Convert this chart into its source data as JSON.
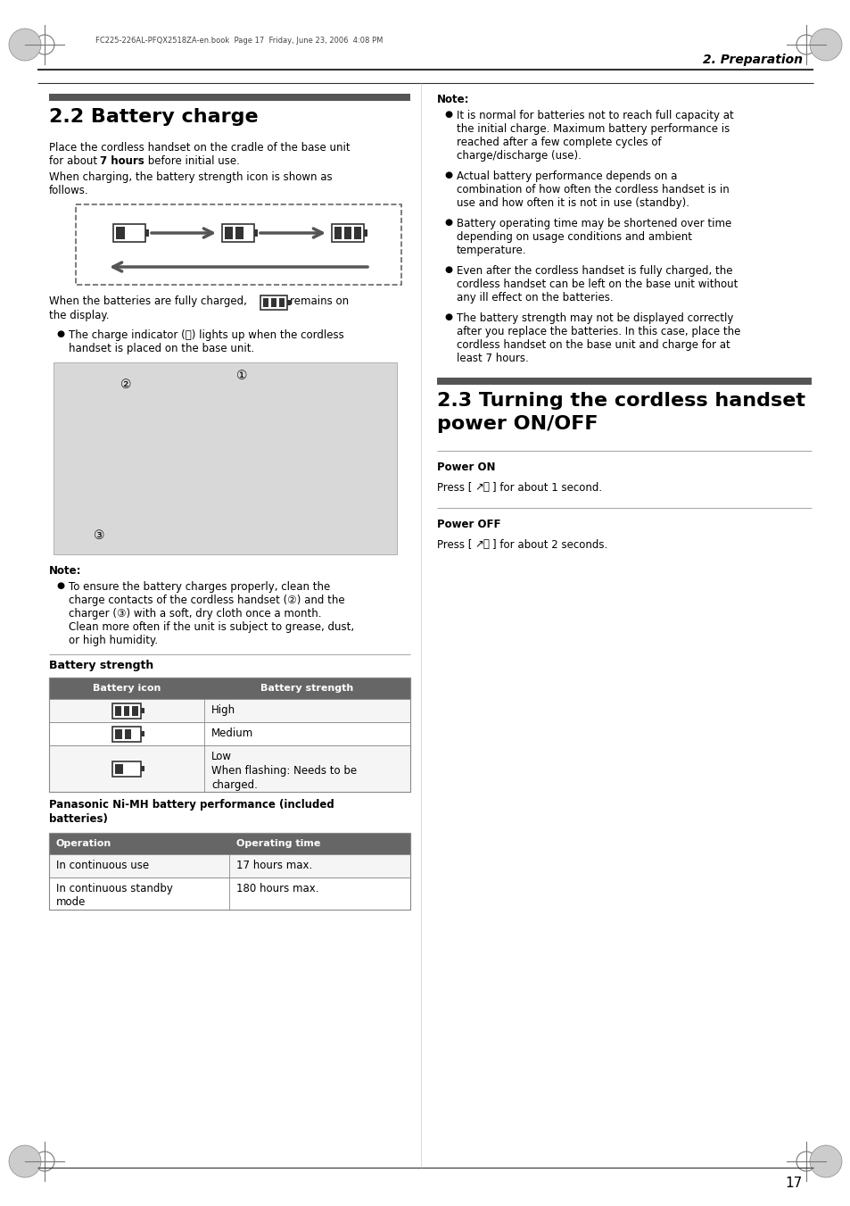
{
  "page_num": "17",
  "header_italic_bold": "2. Preparation",
  "file_info": "FC225-226AL-PFQX2518ZA-en.book  Page 17  Friday, June 23, 2006  4:08 PM",
  "sec22_title": "2.2 Battery charge",
  "sec22_p1a": "Place the cordless handset on the cradle of the base unit",
  "sec22_p1b": "for about ",
  "sec22_p1b_bold": "7 hours",
  "sec22_p1c": " before initial use.",
  "sec22_p2a": "When charging, the battery strength icon is shown as",
  "sec22_p2b": "follows.",
  "sec22_after_diag1": "When the batteries are fully charged,",
  "sec22_after_diag2": "remains on",
  "sec22_after_diag3": "the display.",
  "sec22_bullet1": "The charge indicator (ⓘ) lights up when the cordless",
  "sec22_bullet1b": "handset is placed on the base unit.",
  "note_left_title": "Note:",
  "note_left_b1a": "To ensure the battery charges properly, clean the",
  "note_left_b1b": "charge contacts of the cordless handset (②) and the",
  "note_left_b1c": "charger (③) with a soft, dry cloth once a month.",
  "note_left_b1d": "Clean more often if the unit is subject to grease, dust,",
  "note_left_b1e": "or high humidity.",
  "bat_str_title": "Battery strength",
  "bat_tbl_hdrs": [
    "Battery icon",
    "Battery strength"
  ],
  "bat_tbl_rows": [
    [
      "High"
    ],
    [
      "Medium"
    ],
    [
      "Low",
      "When flashing: Needs to be",
      "charged."
    ]
  ],
  "pan_tbl_title1": "Panasonic Ni-MH battery performance (included",
  "pan_tbl_title2": "batteries)",
  "pan_tbl_hdrs": [
    "Operation",
    "Operating time"
  ],
  "pan_tbl_rows": [
    [
      "In continuous use",
      "17 hours max."
    ],
    [
      "In continuous standby",
      "mode",
      "180 hours max."
    ]
  ],
  "note_right_title": "Note:",
  "note_right_bullets": [
    [
      "It is normal for batteries not to reach full capacity at",
      "the initial charge. Maximum battery performance is",
      "reached after a few complete cycles of",
      "charge/discharge (use)."
    ],
    [
      "Actual battery performance depends on a",
      "combination of how often the cordless handset is in",
      "use and how often it is not in use (standby)."
    ],
    [
      "Battery operating time may be shortened over time",
      "depending on usage conditions and ambient",
      "temperature."
    ],
    [
      "Even after the cordless handset is fully charged, the",
      "cordless handset can be left on the base unit without",
      "any ill effect on the batteries."
    ],
    [
      "The battery strength may not be displayed correctly",
      "after you replace the batteries. In this case, place the",
      "cordless handset on the base unit and charge for at",
      "least 7 hours."
    ]
  ],
  "sec23_title1": "2.3 Turning the cordless handset",
  "sec23_title2": "power ON/OFF",
  "sec23_pon_title": "Power ON",
  "sec23_pon_body": "Press [",
  "sec23_pon_sym": "↗ⓞ",
  "sec23_pon_end": "] for about 1 second.",
  "sec23_poff_title": "Power OFF",
  "sec23_poff_body": "Press [",
  "sec23_poff_sym": "↗ⓞ",
  "sec23_poff_end": "] for about 2 seconds.",
  "bg": "#ffffff",
  "tbl_hdr_bg": "#666666",
  "tbl_hdr_fg": "#ffffff",
  "bar_color": "#555555",
  "divider_color": "#555555",
  "line_color": "#888888"
}
